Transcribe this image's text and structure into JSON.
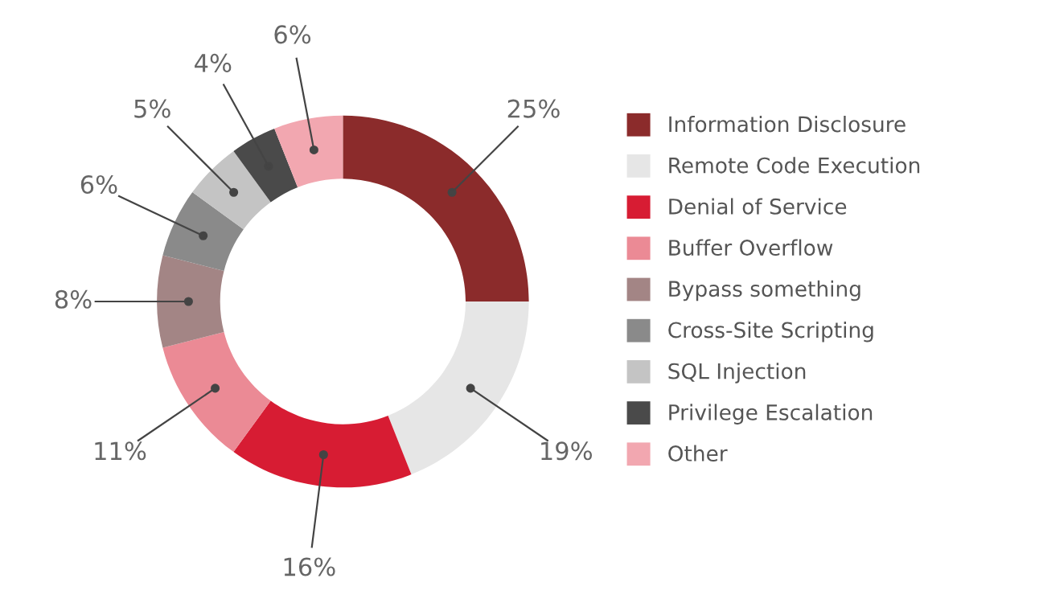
{
  "chart_data": {
    "type": "donut",
    "categories": [
      "Information Disclosure",
      "Remote Code Execution",
      "Denial of Service",
      "Buffer Overflow",
      "Bypass something",
      "Cross-Site Scripting",
      "SQL Injection",
      "Privilege Escalation",
      "Other"
    ],
    "values": [
      25,
      19,
      16,
      11,
      8,
      6,
      5,
      4,
      6
    ],
    "colors": [
      "#8b2b2b",
      "#e6e6e6",
      "#d71c33",
      "#eb8a95",
      "#a38585",
      "#8a8a8a",
      "#c4c4c4",
      "#4a4a4a",
      "#f2a7b0"
    ],
    "value_labels": [
      "25%",
      "19%",
      "16%",
      "11%",
      "8%",
      "6%",
      "5%",
      "4%",
      "6%"
    ],
    "legend": "right"
  }
}
